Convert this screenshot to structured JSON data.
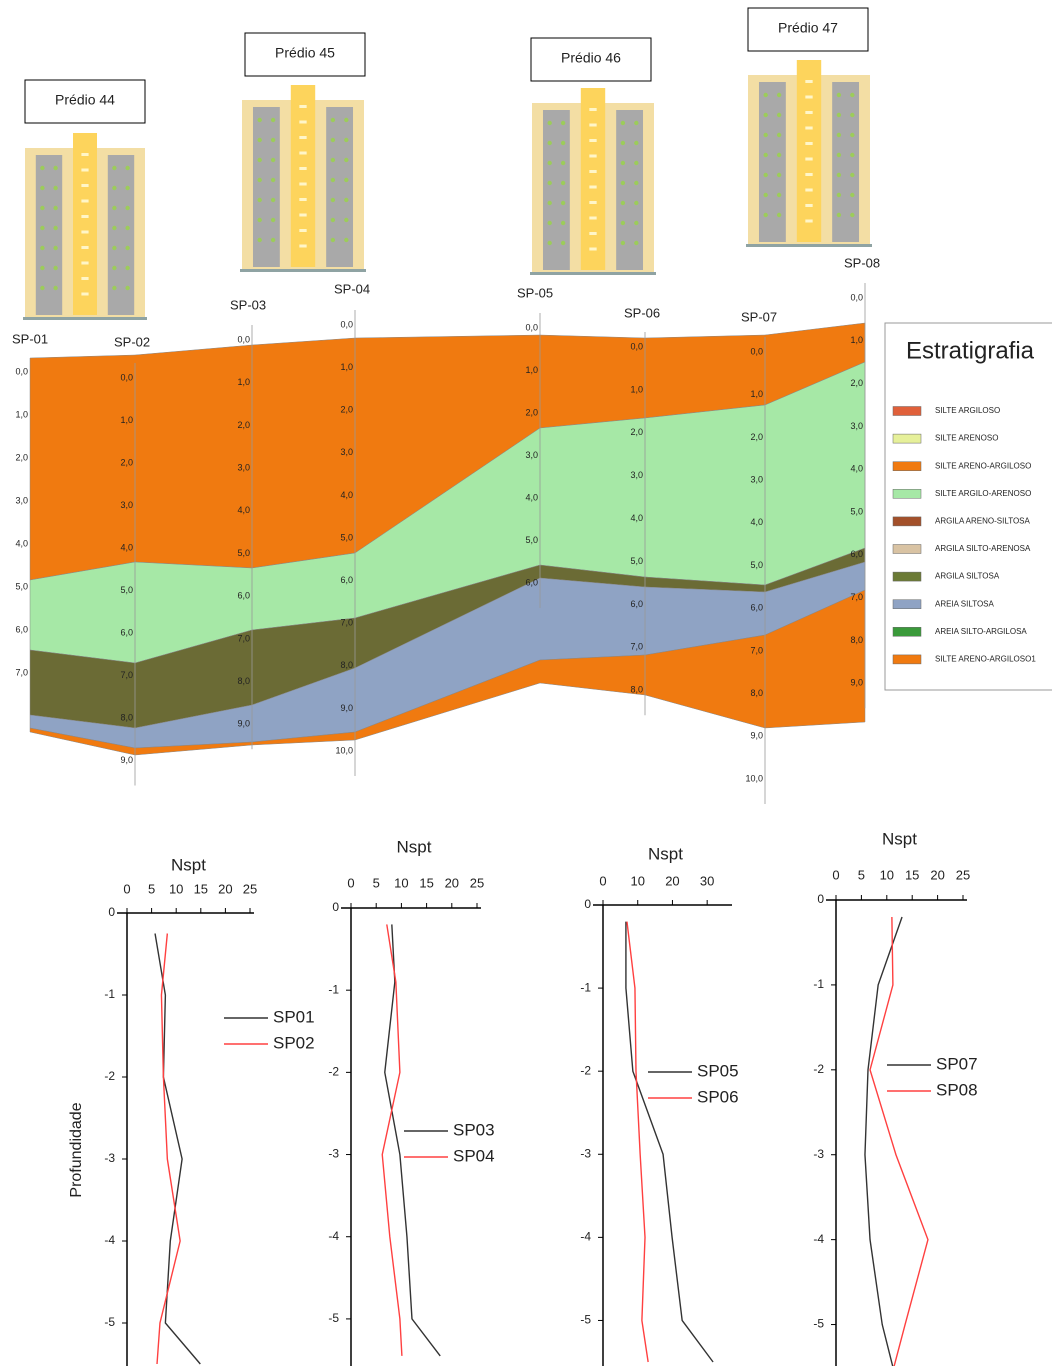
{
  "cross_section": {
    "buildings": [
      "Prédio 44",
      "Prédio 45",
      "Prédio 46",
      "Prédio 47"
    ],
    "boreholes": [
      {
        "name": "SP-01",
        "depths": [
          "0,0",
          "1,0",
          "2,0",
          "3,0",
          "4,0",
          "5,0",
          "6,0",
          "7,0"
        ]
      },
      {
        "name": "SP-02",
        "depths": [
          "0,0",
          "1,0",
          "2,0",
          "3,0",
          "4,0",
          "5,0",
          "6,0",
          "7,0",
          "8,0",
          "9,0"
        ]
      },
      {
        "name": "SP-03",
        "depths": [
          "0,0",
          "1,0",
          "2,0",
          "3,0",
          "4,0",
          "5,0",
          "6,0",
          "7,0",
          "8,0",
          "9,0"
        ]
      },
      {
        "name": "SP-04",
        "depths": [
          "0,0",
          "1,0",
          "2,0",
          "3,0",
          "4,0",
          "5,0",
          "6,0",
          "7,0",
          "8,0",
          "9,0",
          "10,0"
        ]
      },
      {
        "name": "SP-05",
        "depths": [
          "0,0",
          "1,0",
          "2,0",
          "3,0",
          "4,0",
          "5,0",
          "6,0"
        ]
      },
      {
        "name": "SP-06",
        "depths": [
          "0,0",
          "1,0",
          "2,0",
          "3,0",
          "4,0",
          "5,0",
          "6,0",
          "7,0",
          "8,0"
        ]
      },
      {
        "name": "SP-07",
        "depths": [
          "0,0",
          "1,0",
          "2,0",
          "3,0",
          "4,0",
          "5,0",
          "6,0",
          "7,0",
          "8,0",
          "9,0",
          "10,0"
        ]
      },
      {
        "name": "SP-08",
        "depths": [
          "0,0",
          "1,0",
          "2,0",
          "3,0",
          "4,0",
          "5,0",
          "6,0",
          "7,0",
          "8,0",
          "9,0"
        ]
      }
    ],
    "legend": {
      "title": "Estratigrafia",
      "items": [
        {
          "label": "SILTE ARGILOSO",
          "color": "#e0603a"
        },
        {
          "label": "SILTE ARENOSO",
          "color": "#e6f09a"
        },
        {
          "label": "SILTE ARENO-ARGILOSO",
          "color": "#f07a10"
        },
        {
          "label": "SILTE ARGILO-ARENOSO",
          "color": "#a6e8a6"
        },
        {
          "label": "ARGILA ARENO-SILTOSA",
          "color": "#a3502a"
        },
        {
          "label": "ARGILA SILTO-ARENOSA",
          "color": "#d9c3a3"
        },
        {
          "label": "ARGILA SILTOSA",
          "color": "#6b7a35"
        },
        {
          "label": "AREIA SILTOSA",
          "color": "#8fa3c4"
        },
        {
          "label": "AREIA SILTO-ARGILOSA",
          "color": "#3a9a3a"
        },
        {
          "label": "SILTE ARENO-ARGILOSO1",
          "color": "#f07a10"
        }
      ]
    }
  },
  "chart_data": [
    {
      "type": "line",
      "title": "Nspt",
      "ylabel": "Profundidade",
      "xlim": [
        0,
        25
      ],
      "xticks": [
        0,
        5,
        10,
        15,
        20,
        25
      ],
      "ylim": [
        -5.5,
        0
      ],
      "yticks": [
        0,
        -1,
        -2,
        -3,
        -4,
        -5
      ],
      "series": [
        {
          "name": "SP01",
          "color": "#333333",
          "x": [
            5.7,
            7.8,
            7.4,
            11.2,
            8.8,
            7.8,
            14.9
          ],
          "y": [
            -0.25,
            -1,
            -2,
            -3,
            -4,
            -5,
            -5.5
          ]
        },
        {
          "name": "SP02",
          "color": "#ff4040",
          "x": [
            8.2,
            7,
            7.4,
            8.2,
            10.8,
            6.7,
            6.1
          ],
          "y": [
            -0.25,
            -1,
            -2,
            -3,
            -4,
            -5,
            -5.5
          ]
        }
      ]
    },
    {
      "type": "line",
      "title": "Nspt",
      "xlim": [
        0,
        25
      ],
      "xticks": [
        0,
        5,
        10,
        15,
        20,
        25
      ],
      "ylim": [
        -5.5,
        0
      ],
      "yticks": [
        0,
        -1,
        -2,
        -3,
        -4,
        -5
      ],
      "series": [
        {
          "name": "SP03",
          "color": "#333333",
          "x": [
            8.1,
            8.7,
            6.7,
            9.7,
            11.1,
            12.1,
            17.7
          ],
          "y": [
            -0.2,
            -0.9,
            -2,
            -3,
            -4,
            -5,
            -5.45
          ]
        },
        {
          "name": "SP04",
          "color": "#ff4040",
          "x": [
            7.1,
            8.9,
            9.7,
            6.2,
            7.7,
            9.7,
            10.1
          ],
          "y": [
            -0.2,
            -0.9,
            -2,
            -3,
            -4,
            -5,
            -5.45
          ]
        }
      ]
    },
    {
      "type": "line",
      "title": "Nspt",
      "xlim": [
        0,
        36
      ],
      "xticks": [
        0,
        10,
        20,
        30
      ],
      "ylim": [
        -5.5,
        0
      ],
      "yticks": [
        0,
        -1,
        -2,
        -3,
        -4,
        -5
      ],
      "series": [
        {
          "name": "SP05",
          "color": "#333333",
          "x": [
            6.6,
            6.6,
            8.6,
            17.3,
            19.9,
            22.8,
            31.7
          ],
          "y": [
            -0.2,
            -1,
            -2,
            -3,
            -4,
            -5,
            -5.5
          ]
        },
        {
          "name": "SP06",
          "color": "#ff4040",
          "x": [
            6.9,
            9.2,
            9.5,
            10.7,
            12.1,
            11.2,
            13
          ],
          "y": [
            -0.2,
            -1,
            -2,
            -3,
            -4,
            -5,
            -5.5
          ]
        }
      ]
    },
    {
      "type": "line",
      "title": "Nspt",
      "xlim": [
        0,
        25
      ],
      "xticks": [
        0,
        5,
        10,
        15,
        20,
        25
      ],
      "ylim": [
        -5.5,
        0
      ],
      "yticks": [
        0,
        -1,
        -2,
        -3,
        -4,
        -5
      ],
      "series": [
        {
          "name": "SP07",
          "color": "#333333",
          "x": [
            13,
            8.3,
            6.3,
            5.7,
            6.7,
            9.1,
            11.2
          ],
          "y": [
            -0.2,
            -1,
            -2,
            -3,
            -4,
            -5,
            -5.5
          ]
        },
        {
          "name": "SP08",
          "color": "#ff4040",
          "x": [
            11,
            11.2,
            6.7,
            11.8,
            18.1,
            13.6,
            11.4
          ],
          "y": [
            -0.2,
            -1,
            -2,
            -3,
            -4,
            -5,
            -5.5
          ]
        }
      ]
    }
  ]
}
